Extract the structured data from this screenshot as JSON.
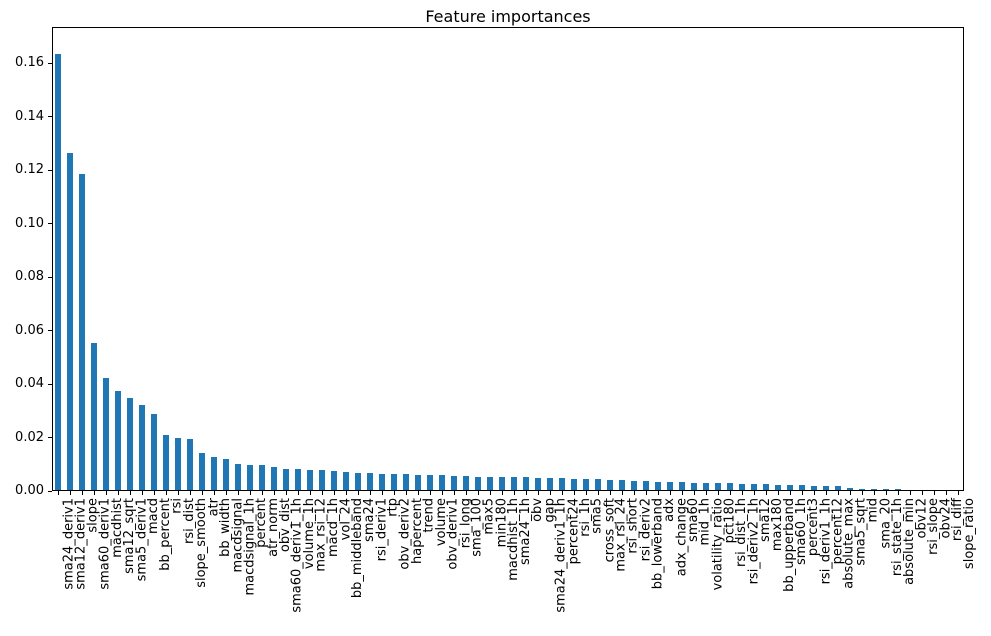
{
  "chart_data": {
    "type": "bar",
    "title": "Feature importances",
    "xlabel": "",
    "ylabel": "",
    "grid": false,
    "legend": false,
    "x_tick_rotation": 90,
    "ylim": [
      0,
      0.1735
    ],
    "yticks": [
      0.0,
      0.02,
      0.04,
      0.06,
      0.08,
      0.1,
      0.12,
      0.14,
      0.16
    ],
    "ytick_labels": [
      "0.00",
      "0.02",
      "0.04",
      "0.06",
      "0.08",
      "0.10",
      "0.12",
      "0.14",
      "0.16"
    ],
    "colors": {
      "bar": "#1f77b4",
      "text": "#000000",
      "background": "#ffffff"
    },
    "categories": [
      "sma24_deriv1",
      "sma12_deriv1",
      "slope",
      "sma60_deriv1",
      "macdhist",
      "sma12_sqrt",
      "sma5_deriv1",
      "macd",
      "bb_percent",
      "rsi",
      "rsi_dist",
      "slope_smooth",
      "atr",
      "bb_width",
      "macdsignal",
      "macdsignal_1h",
      "percent",
      "atr_norm",
      "obv_dist",
      "sma60_deriv1_1h",
      "volume_1h",
      "max_rsi_12",
      "macd_1h",
      "vol_24",
      "bb_middleband",
      "sma24",
      "rsi_deriv1",
      "rtp",
      "obv_deriv2",
      "hapercent",
      "trend",
      "volume",
      "obv_deriv1",
      "rsi_long",
      "sma_100",
      "max5",
      "min180",
      "macdhist_1h",
      "sma24_1h",
      "obv",
      "gap",
      "sma24_deriv1_1h",
      "percent24",
      "rsi_1h",
      "sma5",
      "cross_soft",
      "max_rsi_24",
      "rsi_short",
      "rsi_deriv2",
      "bb_lowerband",
      "adx",
      "adx_change",
      "sma60",
      "mid_1h",
      "volatility_ratio",
      "pct180",
      "rsi_dist_1h",
      "rsi_deriv2_1h",
      "sma12",
      "max180",
      "bb_upperband",
      "sma60_1h",
      "percent3",
      "rsi_deriv1_1h",
      "percent12",
      "absolute_max",
      "sma5_sqrt",
      "mid",
      "sma_20",
      "rsi_state_1h",
      "absolute_min",
      "obv12",
      "rsi_slope",
      "obv24",
      "rsi_diff",
      "slope_ratio"
    ],
    "values": [
      0.163,
      0.126,
      0.118,
      0.055,
      0.0418,
      0.0369,
      0.0345,
      0.0316,
      0.0285,
      0.0205,
      0.0193,
      0.019,
      0.0138,
      0.0125,
      0.0115,
      0.0097,
      0.0095,
      0.0092,
      0.0085,
      0.0079,
      0.0077,
      0.0076,
      0.0073,
      0.0071,
      0.0067,
      0.0065,
      0.0063,
      0.0061,
      0.0059,
      0.0058,
      0.0057,
      0.0056,
      0.0055,
      0.0053,
      0.0051,
      0.005,
      0.0049,
      0.0048,
      0.0048,
      0.0047,
      0.0046,
      0.0045,
      0.0044,
      0.0043,
      0.0042,
      0.0041,
      0.0039,
      0.0037,
      0.0035,
      0.0033,
      0.0031,
      0.003,
      0.0029,
      0.0028,
      0.0027,
      0.0026,
      0.0025,
      0.0024,
      0.0023,
      0.0022,
      0.002,
      0.0019,
      0.0018,
      0.0016,
      0.0015,
      0.0014,
      0.0009,
      0.0004,
      0.0003,
      0.0002,
      0.0002,
      0.0001,
      0.0001,
      0.0001,
      0.0001,
      0.0
    ]
  }
}
